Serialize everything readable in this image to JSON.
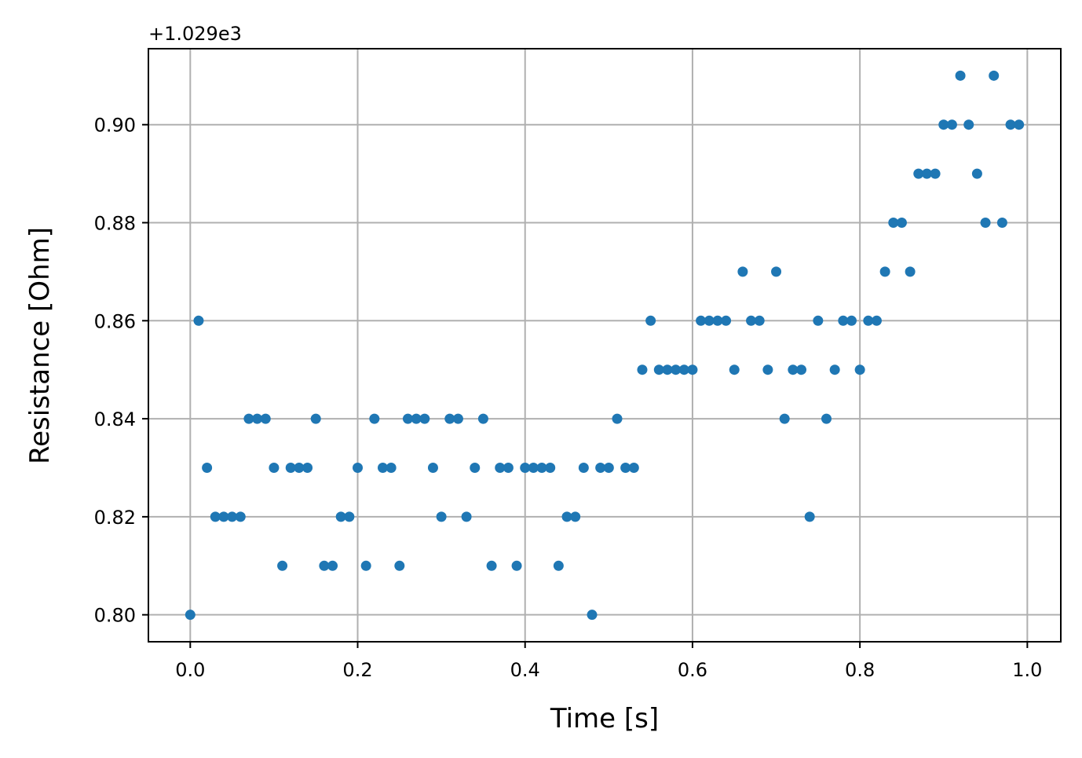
{
  "chart_data": {
    "type": "scatter",
    "title": "",
    "xlabel": "Time [s]",
    "ylabel": "Resistance [Ohm]",
    "offset_label": "+1.029e3",
    "xlim": [
      -0.05,
      1.04
    ],
    "ylim": [
      0.7945,
      0.9155
    ],
    "xticks": [
      0.0,
      0.2,
      0.4,
      0.6,
      0.8,
      1.0
    ],
    "xtick_labels": [
      "0.0",
      "0.2",
      "0.4",
      "0.6",
      "0.8",
      "1.0"
    ],
    "yticks": [
      0.8,
      0.82,
      0.84,
      0.86,
      0.88,
      0.9
    ],
    "ytick_labels": [
      "0.80",
      "0.82",
      "0.84",
      "0.86",
      "0.88",
      "0.90"
    ],
    "grid": true,
    "marker_color": "#1f77b4",
    "grid_color": "#b0b0b0",
    "series": [
      {
        "x": [
          0.0,
          0.01,
          0.02,
          0.03,
          0.04,
          0.05,
          0.06,
          0.07,
          0.08,
          0.09,
          0.1,
          0.11,
          0.12,
          0.13,
          0.14,
          0.15,
          0.16,
          0.17,
          0.18,
          0.19,
          0.2,
          0.21,
          0.22,
          0.23,
          0.24,
          0.25,
          0.26,
          0.27,
          0.28,
          0.29,
          0.3,
          0.31,
          0.32,
          0.33,
          0.34,
          0.35,
          0.36,
          0.37,
          0.38,
          0.39,
          0.4,
          0.41,
          0.42,
          0.43,
          0.44,
          0.45,
          0.46,
          0.47,
          0.48,
          0.49,
          0.5,
          0.51,
          0.52,
          0.53,
          0.54,
          0.55,
          0.56,
          0.57,
          0.58,
          0.59,
          0.6,
          0.61,
          0.62,
          0.63,
          0.64,
          0.65,
          0.66,
          0.67,
          0.68,
          0.69,
          0.7,
          0.71,
          0.72,
          0.73,
          0.74,
          0.75,
          0.76,
          0.77,
          0.78,
          0.79,
          0.8,
          0.81,
          0.82,
          0.83,
          0.84,
          0.85,
          0.86,
          0.87,
          0.88,
          0.89,
          0.9,
          0.91,
          0.92,
          0.93,
          0.94,
          0.95,
          0.96,
          0.97,
          0.98,
          0.99
        ],
        "y": [
          0.8,
          0.86,
          0.83,
          0.82,
          0.82,
          0.82,
          0.82,
          0.84,
          0.84,
          0.84,
          0.83,
          0.81,
          0.83,
          0.83,
          0.83,
          0.84,
          0.81,
          0.81,
          0.82,
          0.82,
          0.83,
          0.81,
          0.84,
          0.83,
          0.83,
          0.81,
          0.84,
          0.84,
          0.84,
          0.83,
          0.82,
          0.84,
          0.84,
          0.82,
          0.83,
          0.84,
          0.81,
          0.83,
          0.83,
          0.81,
          0.83,
          0.83,
          0.83,
          0.83,
          0.81,
          0.82,
          0.82,
          0.83,
          0.8,
          0.83,
          0.83,
          0.84,
          0.83,
          0.83,
          0.85,
          0.86,
          0.85,
          0.85,
          0.85,
          0.85,
          0.85,
          0.86,
          0.86,
          0.86,
          0.86,
          0.85,
          0.87,
          0.86,
          0.86,
          0.85,
          0.87,
          0.84,
          0.85,
          0.85,
          0.82,
          0.86,
          0.84,
          0.85,
          0.86,
          0.86,
          0.85,
          0.86,
          0.86,
          0.87,
          0.88,
          0.88,
          0.87,
          0.89,
          0.89,
          0.89,
          0.9,
          0.9,
          0.91,
          0.9,
          0.89,
          0.88,
          0.91,
          0.88,
          0.9,
          0.9
        ]
      }
    ]
  }
}
